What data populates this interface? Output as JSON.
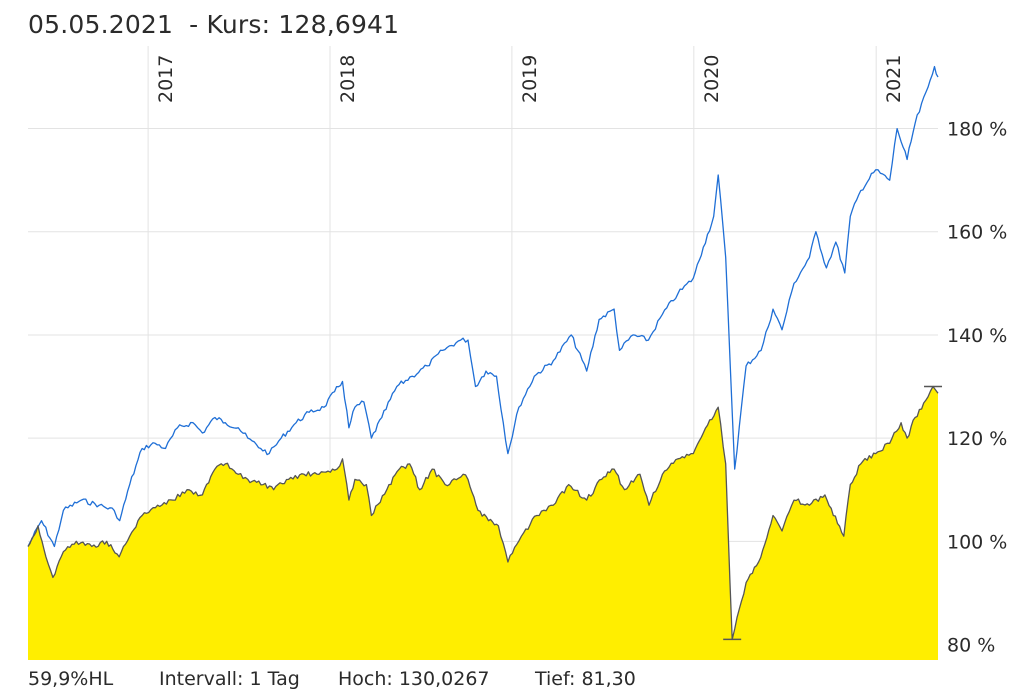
{
  "header": {
    "date": "05.05.2021",
    "price_label": "- Kurs: 128,6941"
  },
  "footer": {
    "hl": "59,9%HL",
    "interval": "Intervall: 1 Tag",
    "high": "Hoch: 130,0267",
    "low": "Tief:  81,30"
  },
  "chart_data": {
    "type": "line",
    "xlim": [
      "2016-05-05",
      "2021-05-05"
    ],
    "ylim": [
      77,
      196
    ],
    "y_ticks": [
      {
        "value": 80,
        "label": "80 %"
      },
      {
        "value": 100,
        "label": "100 %"
      },
      {
        "value": 120,
        "label": "120 %"
      },
      {
        "value": 140,
        "label": "140 %"
      },
      {
        "value": 160,
        "label": "160 %"
      },
      {
        "value": 180,
        "label": "180 %"
      }
    ],
    "x_ticks": [
      {
        "date": "2017-01-01",
        "label": "2017"
      },
      {
        "date": "2018-01-01",
        "label": "2018"
      },
      {
        "date": "2019-01-01",
        "label": "2019"
      },
      {
        "date": "2020-01-01",
        "label": "2020"
      },
      {
        "date": "2021-01-01",
        "label": "2021"
      }
    ],
    "grid": true,
    "series": [
      {
        "role": "benchmark",
        "color": "#1f6fd6",
        "points": [
          [
            "2016-05-05",
            99
          ],
          [
            "2016-06-01",
            104
          ],
          [
            "2016-06-27",
            99
          ],
          [
            "2016-07-15",
            106
          ],
          [
            "2016-08-20",
            108
          ],
          [
            "2016-09-25",
            107
          ],
          [
            "2016-10-25",
            106
          ],
          [
            "2016-11-05",
            104
          ],
          [
            "2016-11-25",
            111
          ],
          [
            "2016-12-20",
            118
          ],
          [
            "2017-01-15",
            119
          ],
          [
            "2017-02-05",
            118
          ],
          [
            "2017-03-01",
            122
          ],
          [
            "2017-04-01",
            123
          ],
          [
            "2017-04-20",
            121
          ],
          [
            "2017-05-15",
            124
          ],
          [
            "2017-06-05",
            123
          ],
          [
            "2017-07-01",
            122
          ],
          [
            "2017-07-20",
            120
          ],
          [
            "2017-08-15",
            118
          ],
          [
            "2017-09-01",
            117
          ],
          [
            "2017-09-25",
            120
          ],
          [
            "2017-10-25",
            123
          ],
          [
            "2017-11-20",
            125
          ],
          [
            "2017-12-20",
            126
          ],
          [
            "2018-01-10",
            129
          ],
          [
            "2018-01-26",
            131
          ],
          [
            "2018-02-08",
            122
          ],
          [
            "2018-02-20",
            126
          ],
          [
            "2018-03-10",
            127
          ],
          [
            "2018-03-25",
            120
          ],
          [
            "2018-04-15",
            124
          ],
          [
            "2018-05-15",
            130
          ],
          [
            "2018-06-15",
            132
          ],
          [
            "2018-07-15",
            134
          ],
          [
            "2018-08-15",
            137
          ],
          [
            "2018-09-20",
            139
          ],
          [
            "2018-10-05",
            139
          ],
          [
            "2018-10-20",
            130
          ],
          [
            "2018-11-10",
            133
          ],
          [
            "2018-12-01",
            132
          ],
          [
            "2018-12-24",
            117
          ],
          [
            "2019-01-15",
            126
          ],
          [
            "2019-02-15",
            132
          ],
          [
            "2019-03-25",
            135
          ],
          [
            "2019-04-30",
            140
          ],
          [
            "2019-05-31",
            133
          ],
          [
            "2019-06-25",
            143
          ],
          [
            "2019-07-25",
            145
          ],
          [
            "2019-08-05",
            137
          ],
          [
            "2019-09-01",
            140
          ],
          [
            "2019-10-02",
            139
          ],
          [
            "2019-10-30",
            144
          ],
          [
            "2019-11-30",
            148
          ],
          [
            "2019-12-31",
            151
          ],
          [
            "2020-01-20",
            157
          ],
          [
            "2020-02-10",
            163
          ],
          [
            "2020-02-19",
            171
          ],
          [
            "2020-03-05",
            155
          ],
          [
            "2020-03-23",
            114
          ],
          [
            "2020-04-15",
            134
          ],
          [
            "2020-05-15",
            137
          ],
          [
            "2020-06-08",
            145
          ],
          [
            "2020-06-26",
            141
          ],
          [
            "2020-07-20",
            150
          ],
          [
            "2020-08-20",
            155
          ],
          [
            "2020-09-02",
            160
          ],
          [
            "2020-09-23",
            153
          ],
          [
            "2020-10-12",
            158
          ],
          [
            "2020-10-30",
            152
          ],
          [
            "2020-11-10",
            163
          ],
          [
            "2020-12-01",
            168
          ],
          [
            "2020-12-31",
            172
          ],
          [
            "2021-01-28",
            170
          ],
          [
            "2021-02-12",
            180
          ],
          [
            "2021-03-04",
            174
          ],
          [
            "2021-03-20",
            181
          ],
          [
            "2021-04-15",
            188
          ],
          [
            "2021-04-28",
            192
          ],
          [
            "2021-05-05",
            190
          ]
        ]
      },
      {
        "role": "fund",
        "color": "#555555",
        "fill": "#ffee00",
        "points": [
          [
            "2016-05-05",
            99
          ],
          [
            "2016-05-25",
            103
          ],
          [
            "2016-06-10",
            97
          ],
          [
            "2016-06-24",
            93
          ],
          [
            "2016-07-15",
            98
          ],
          [
            "2016-08-10",
            100
          ],
          [
            "2016-09-10",
            99
          ],
          [
            "2016-10-10",
            100
          ],
          [
            "2016-11-04",
            97
          ],
          [
            "2016-11-25",
            101
          ],
          [
            "2016-12-20",
            105
          ],
          [
            "2017-01-20",
            107
          ],
          [
            "2017-02-20",
            108
          ],
          [
            "2017-03-20",
            110
          ],
          [
            "2017-04-20",
            109
          ],
          [
            "2017-05-15",
            114
          ],
          [
            "2017-06-05",
            115
          ],
          [
            "2017-07-01",
            113
          ],
          [
            "2017-07-20",
            112
          ],
          [
            "2017-08-20",
            111
          ],
          [
            "2017-09-10",
            110
          ],
          [
            "2017-10-10",
            112
          ],
          [
            "2017-11-10",
            113
          ],
          [
            "2017-12-10",
            113
          ],
          [
            "2018-01-15",
            114
          ],
          [
            "2018-01-26",
            116
          ],
          [
            "2018-02-08",
            108
          ],
          [
            "2018-02-20",
            112
          ],
          [
            "2018-03-15",
            111
          ],
          [
            "2018-03-25",
            105
          ],
          [
            "2018-04-25",
            110
          ],
          [
            "2018-05-20",
            114
          ],
          [
            "2018-06-10",
            115
          ],
          [
            "2018-06-30",
            110
          ],
          [
            "2018-07-25",
            114
          ],
          [
            "2018-08-20",
            111
          ],
          [
            "2018-09-25",
            113
          ],
          [
            "2018-10-05",
            112
          ],
          [
            "2018-10-25",
            106
          ],
          [
            "2018-11-15",
            104
          ],
          [
            "2018-12-05",
            103
          ],
          [
            "2018-12-24",
            96
          ],
          [
            "2019-01-20",
            101
          ],
          [
            "2019-02-20",
            105
          ],
          [
            "2019-03-25",
            107
          ],
          [
            "2019-04-25",
            111
          ],
          [
            "2019-05-31",
            108
          ],
          [
            "2019-06-30",
            112
          ],
          [
            "2019-07-25",
            114
          ],
          [
            "2019-08-15",
            110
          ],
          [
            "2019-09-15",
            113
          ],
          [
            "2019-10-03",
            107
          ],
          [
            "2019-10-30",
            113
          ],
          [
            "2019-11-30",
            116
          ],
          [
            "2019-12-31",
            117
          ],
          [
            "2020-01-20",
            121
          ],
          [
            "2020-02-19",
            126
          ],
          [
            "2020-03-05",
            115
          ],
          [
            "2020-03-18",
            81
          ],
          [
            "2020-03-23",
            83
          ],
          [
            "2020-04-15",
            92
          ],
          [
            "2020-05-10",
            96
          ],
          [
            "2020-06-08",
            105
          ],
          [
            "2020-06-26",
            102
          ],
          [
            "2020-07-20",
            108
          ],
          [
            "2020-08-20",
            107
          ],
          [
            "2020-09-20",
            109
          ],
          [
            "2020-10-28",
            101
          ],
          [
            "2020-11-10",
            111
          ],
          [
            "2020-12-01",
            115
          ],
          [
            "2020-12-31",
            117
          ],
          [
            "2021-01-28",
            119
          ],
          [
            "2021-02-20",
            123
          ],
          [
            "2021-03-04",
            120
          ],
          [
            "2021-03-20",
            124
          ],
          [
            "2021-04-15",
            128
          ],
          [
            "2021-04-25",
            130
          ],
          [
            "2021-05-05",
            128.69
          ]
        ]
      }
    ]
  }
}
